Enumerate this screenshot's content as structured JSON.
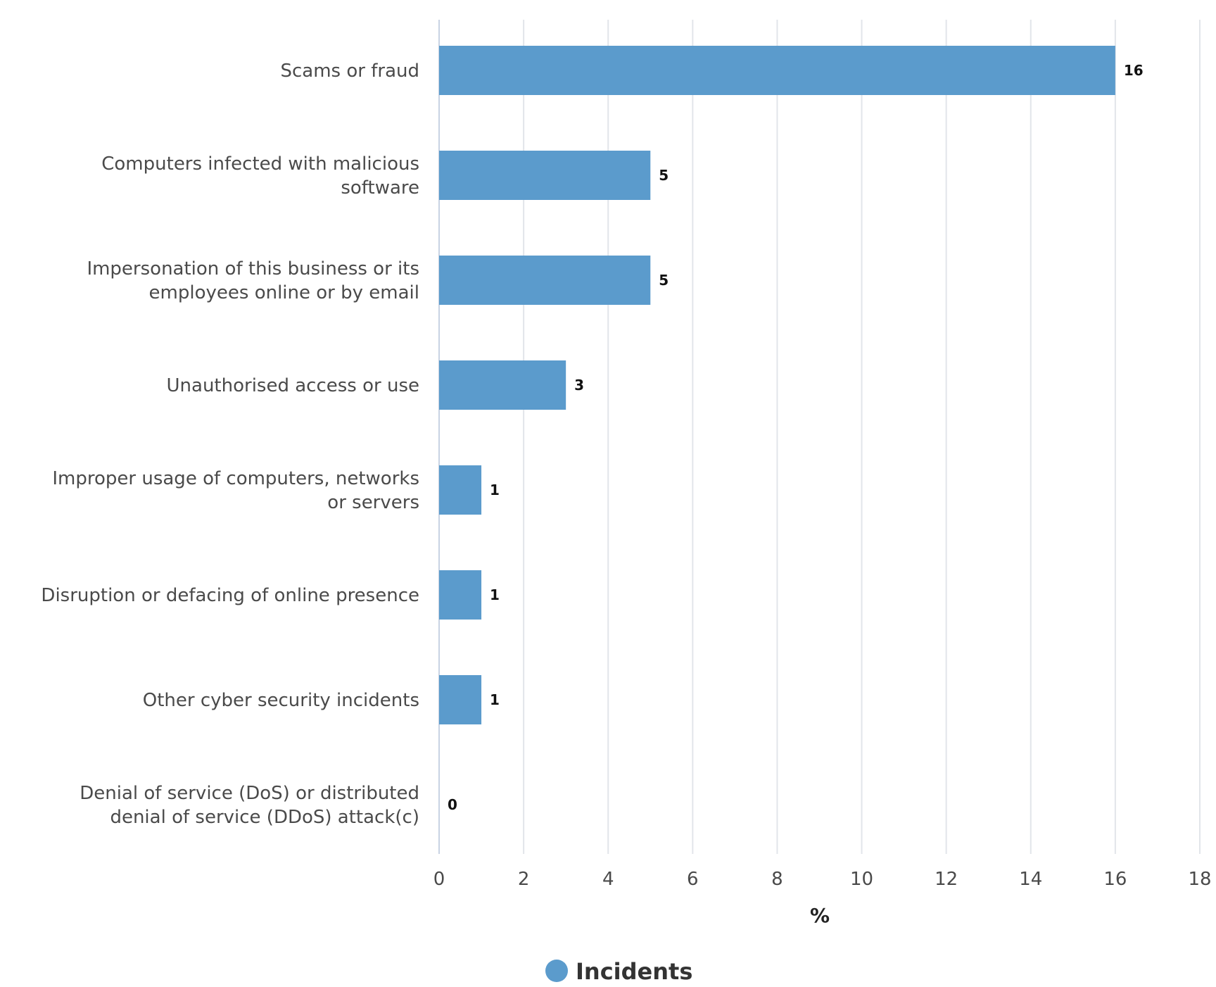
{
  "chart_data": {
    "type": "bar",
    "orientation": "horizontal",
    "categories": [
      [
        "Scams or fraud"
      ],
      [
        "Computers infected with malicious",
        "software"
      ],
      [
        "Impersonation of this business or its",
        "employees online or by email"
      ],
      [
        "Unauthorised access or use"
      ],
      [
        "Improper usage of computers, networks",
        "or servers"
      ],
      [
        "Disruption or defacing of online presence"
      ],
      [
        "Other cyber security incidents"
      ],
      [
        "Denial of service (DoS) or distributed",
        "denial of service (DDoS) attack(c)"
      ]
    ],
    "series": [
      {
        "name": "Incidents",
        "color": "#5b9bcc",
        "values": [
          16,
          5,
          5,
          3,
          1,
          1,
          1,
          0
        ]
      }
    ],
    "data_labels": [
      "16",
      "5",
      "5",
      "3",
      "1",
      "1",
      "1",
      "0"
    ],
    "xlabel": "%",
    "xlim": [
      0,
      18
    ],
    "xticks": [
      0,
      2,
      4,
      6,
      8,
      10,
      12,
      14,
      16,
      18
    ],
    "grid": "vertical",
    "legend_position": "bottom-center"
  }
}
